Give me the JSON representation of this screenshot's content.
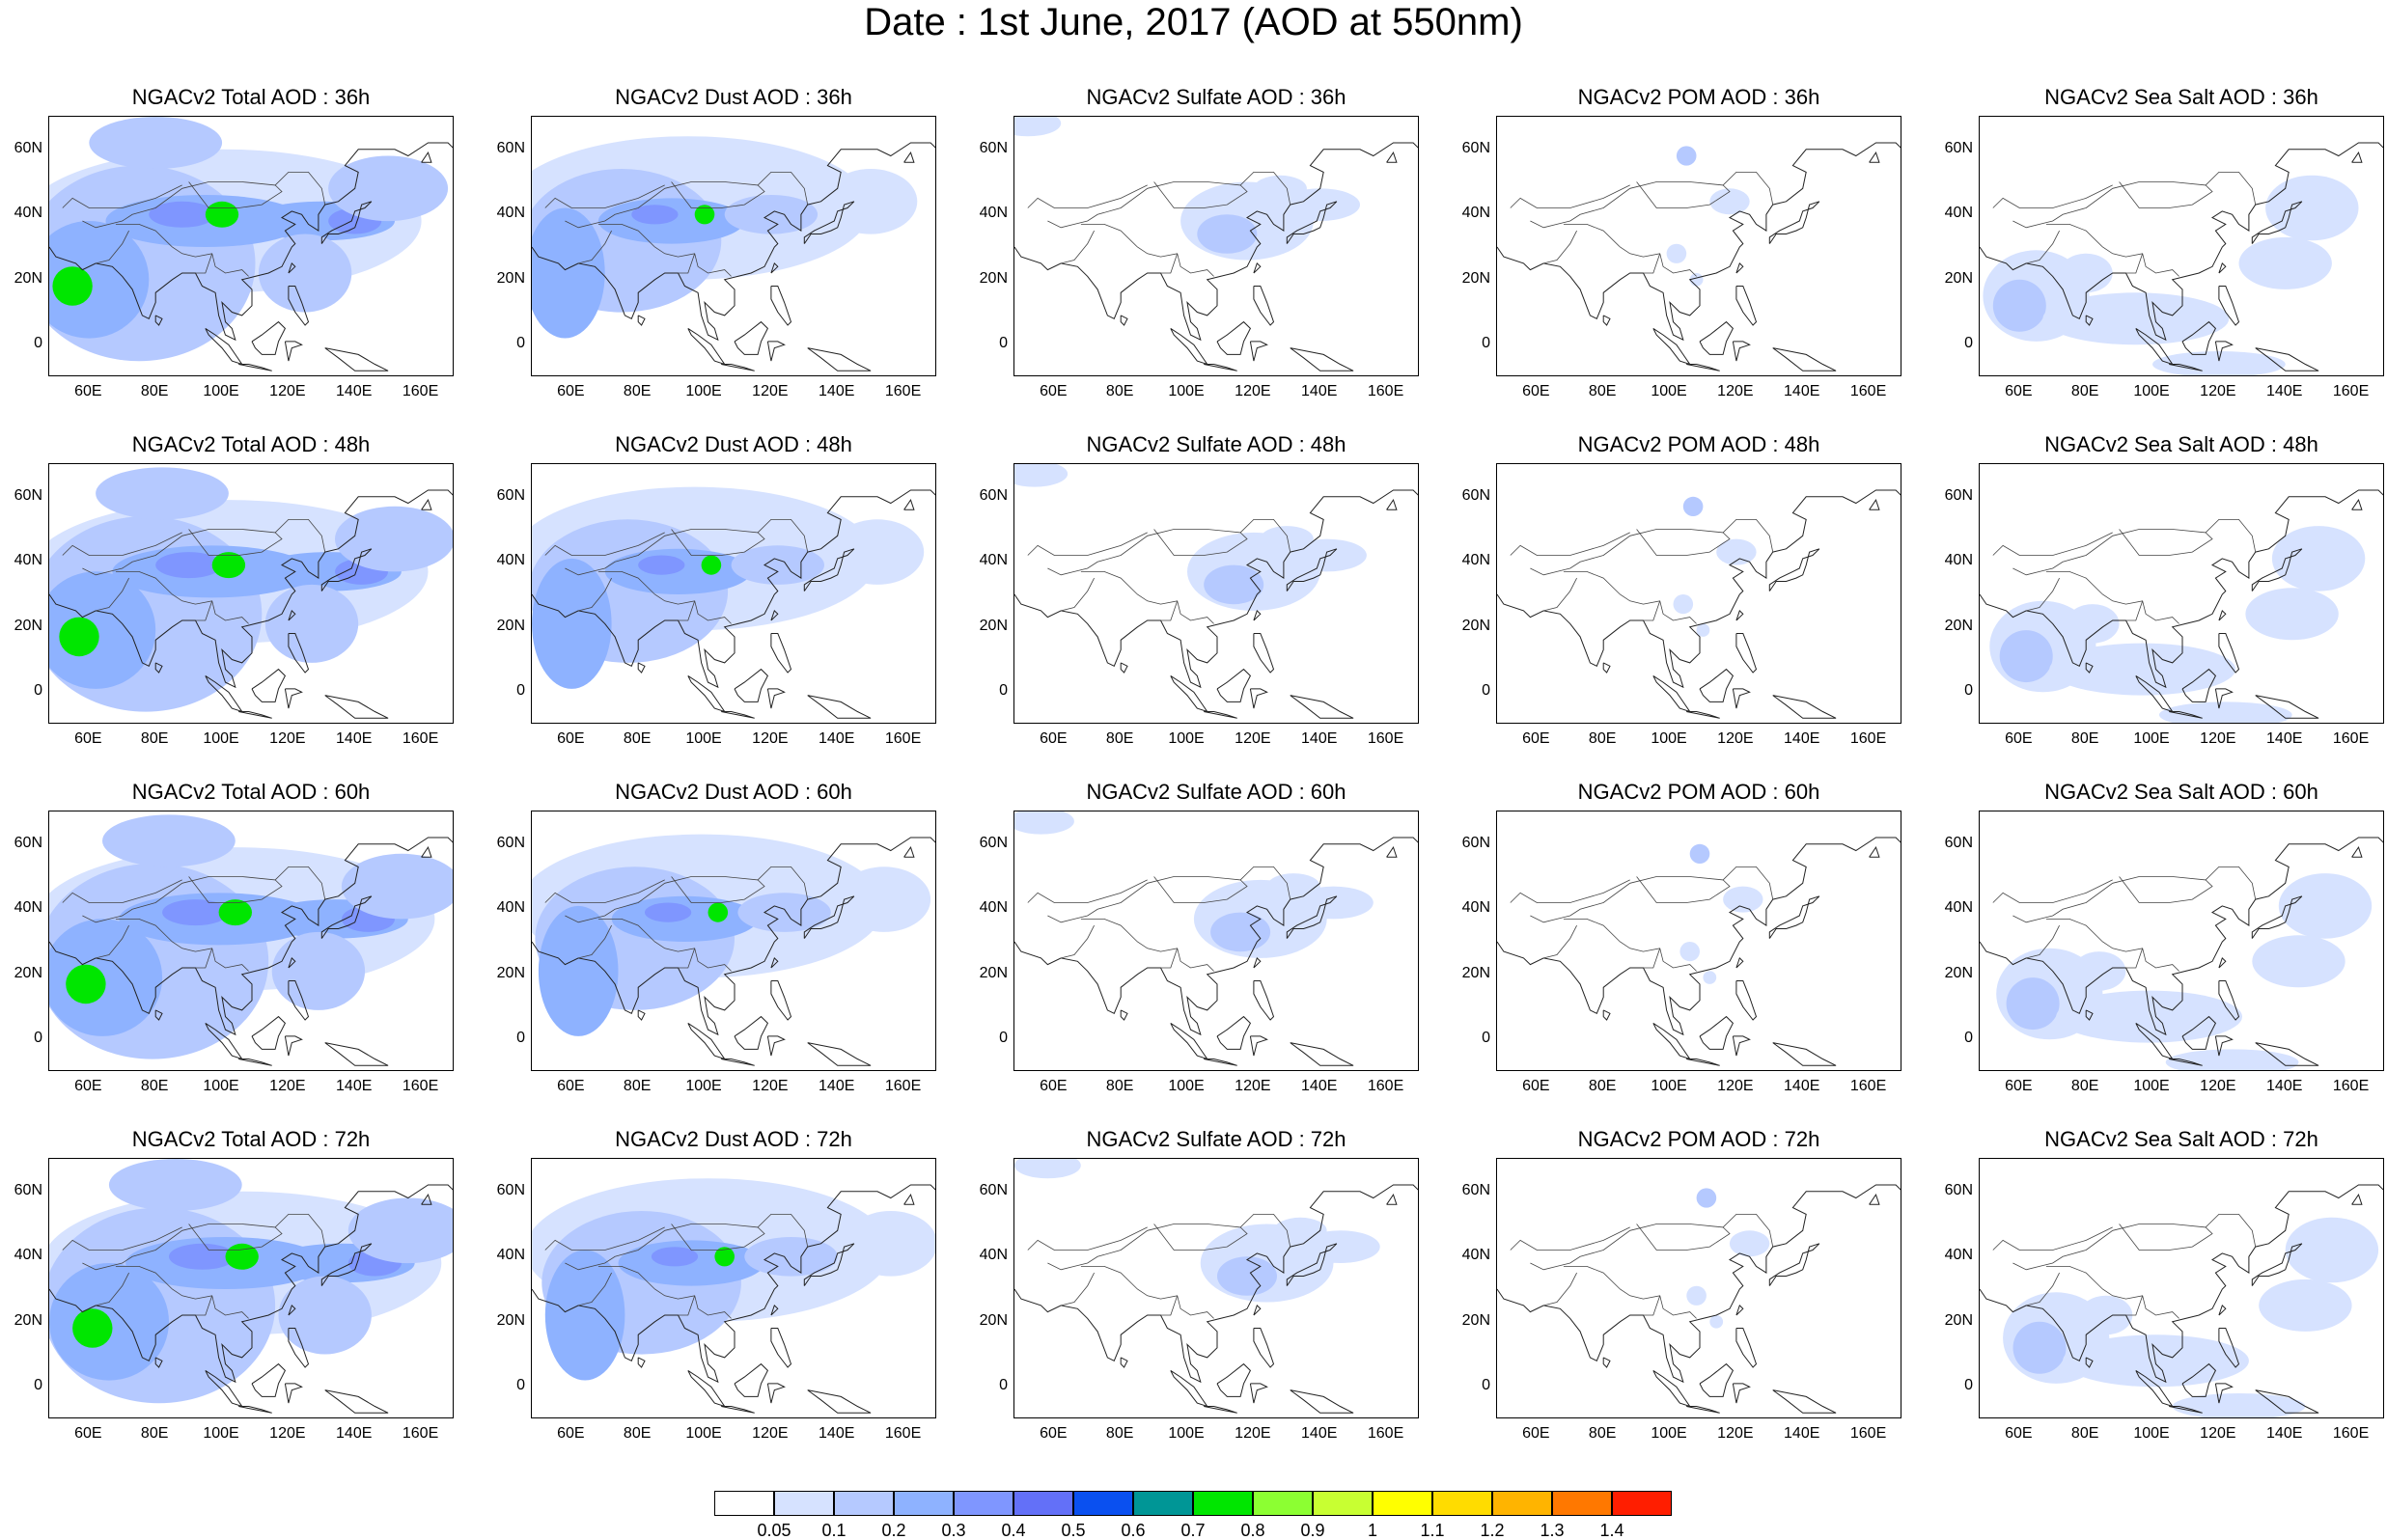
{
  "title": "Date : 1st June, 2017 (AOD at 550nm)",
  "lat_ticks": [
    "60N",
    "40N",
    "20N",
    "0"
  ],
  "lon_ticks": [
    "60E",
    "80E",
    "100E",
    "120E",
    "140E",
    "160E"
  ],
  "map_extent": {
    "lon": [
      48,
      170
    ],
    "lat": [
      -10,
      70
    ]
  },
  "panels": [
    {
      "title": "NGACv2 Total AOD : 36h",
      "species": "total",
      "hour": 36
    },
    {
      "title": "NGACv2 Dust AOD : 36h",
      "species": "dust",
      "hour": 36
    },
    {
      "title": "NGACv2 Sulfate AOD : 36h",
      "species": "sulfate",
      "hour": 36
    },
    {
      "title": "NGACv2 POM AOD : 36h",
      "species": "pom",
      "hour": 36
    },
    {
      "title": "NGACv2 Sea Salt AOD : 36h",
      "species": "seasalt",
      "hour": 36
    },
    {
      "title": "NGACv2 Total AOD : 48h",
      "species": "total",
      "hour": 48
    },
    {
      "title": "NGACv2 Dust AOD : 48h",
      "species": "dust",
      "hour": 48
    },
    {
      "title": "NGACv2 Sulfate AOD : 48h",
      "species": "sulfate",
      "hour": 48
    },
    {
      "title": "NGACv2 POM AOD : 48h",
      "species": "pom",
      "hour": 48
    },
    {
      "title": "NGACv2 Sea Salt AOD : 48h",
      "species": "seasalt",
      "hour": 48
    },
    {
      "title": "NGACv2 Total AOD : 60h",
      "species": "total",
      "hour": 60
    },
    {
      "title": "NGACv2 Dust AOD : 60h",
      "species": "dust",
      "hour": 60
    },
    {
      "title": "NGACv2 Sulfate AOD : 60h",
      "species": "sulfate",
      "hour": 60
    },
    {
      "title": "NGACv2 POM AOD : 60h",
      "species": "pom",
      "hour": 60
    },
    {
      "title": "NGACv2 Sea Salt AOD : 60h",
      "species": "seasalt",
      "hour": 60
    },
    {
      "title": "NGACv2 Total AOD : 72h",
      "species": "total",
      "hour": 72
    },
    {
      "title": "NGACv2 Dust AOD : 72h",
      "species": "dust",
      "hour": 72
    },
    {
      "title": "NGACv2 Sulfate AOD : 72h",
      "species": "sulfate",
      "hour": 72
    },
    {
      "title": "NGACv2 POM AOD : 72h",
      "species": "pom",
      "hour": 72
    },
    {
      "title": "NGACv2 Sea Salt  AOD : 72h",
      "species": "seasalt",
      "hour": 72
    }
  ],
  "colorbar": {
    "colors": [
      "#ffffff",
      "#d6e2ff",
      "#b5c9ff",
      "#8eb2ff",
      "#7f96ff",
      "#6370f8",
      "#0a50f0",
      "#009696",
      "#00e600",
      "#8cff32",
      "#c8ff32",
      "#ffff00",
      "#ffdc00",
      "#ffb400",
      "#ff7800",
      "#ff1e00"
    ],
    "labels": [
      "0.05",
      "0.1",
      "0.2",
      "0.3",
      "0.4",
      "0.5",
      "0.6",
      "0.7",
      "0.8",
      "0.9",
      "1",
      "1.1",
      "1.2",
      "1.3",
      "1.4"
    ]
  }
}
